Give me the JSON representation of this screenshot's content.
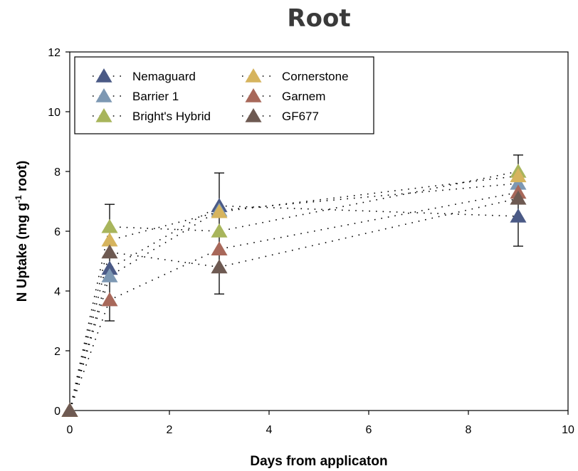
{
  "chart_data": {
    "type": "scatter",
    "title": "Root",
    "xlabel": "Days from applicaton",
    "ylabel_main": "N Uptake (mg g",
    "ylabel_sup": "-1",
    "ylabel_end": " root)",
    "xlim": [
      0,
      10
    ],
    "ylim": [
      0,
      12
    ],
    "xticks": [
      "0",
      "2",
      "4",
      "6",
      "8",
      "10"
    ],
    "yticks": [
      "0",
      "2",
      "4",
      "6",
      "8",
      "10",
      "12"
    ],
    "grid": false,
    "legend_position": "top-left",
    "error_bars": [
      {
        "x": 0.8,
        "low": 3.0,
        "high": 6.9
      },
      {
        "x": 3.0,
        "low": 3.9,
        "high": 7.95
      },
      {
        "x": 9.0,
        "low": 5.5,
        "high": 8.55
      }
    ],
    "series": [
      {
        "name": "Nemaguard",
        "color": "#4b5a86",
        "x": [
          0,
          0.8,
          3,
          9
        ],
        "y": [
          0,
          4.75,
          6.85,
          6.5
        ]
      },
      {
        "name": "Barrier 1",
        "color": "#7d98b3",
        "x": [
          0,
          0.8,
          3,
          9
        ],
        "y": [
          0,
          4.5,
          6.7,
          7.6
        ]
      },
      {
        "name": "Bright's Hybrid",
        "color": "#a8b55c",
        "x": [
          0,
          0.8,
          3,
          9
        ],
        "y": [
          0,
          6.15,
          6.0,
          8.0
        ]
      },
      {
        "name": "Cornerstone",
        "color": "#d6b45e",
        "x": [
          0,
          0.8,
          3,
          9
        ],
        "y": [
          0,
          5.7,
          6.65,
          7.85
        ]
      },
      {
        "name": "Garnem",
        "color": "#a8685a",
        "x": [
          0,
          0.8,
          3,
          9
        ],
        "y": [
          0,
          3.7,
          5.4,
          7.3
        ]
      },
      {
        "name": "GF677",
        "color": "#6e5a52",
        "x": [
          0,
          0.8,
          3,
          9
        ],
        "y": [
          0,
          5.3,
          4.8,
          7.1
        ]
      }
    ]
  }
}
